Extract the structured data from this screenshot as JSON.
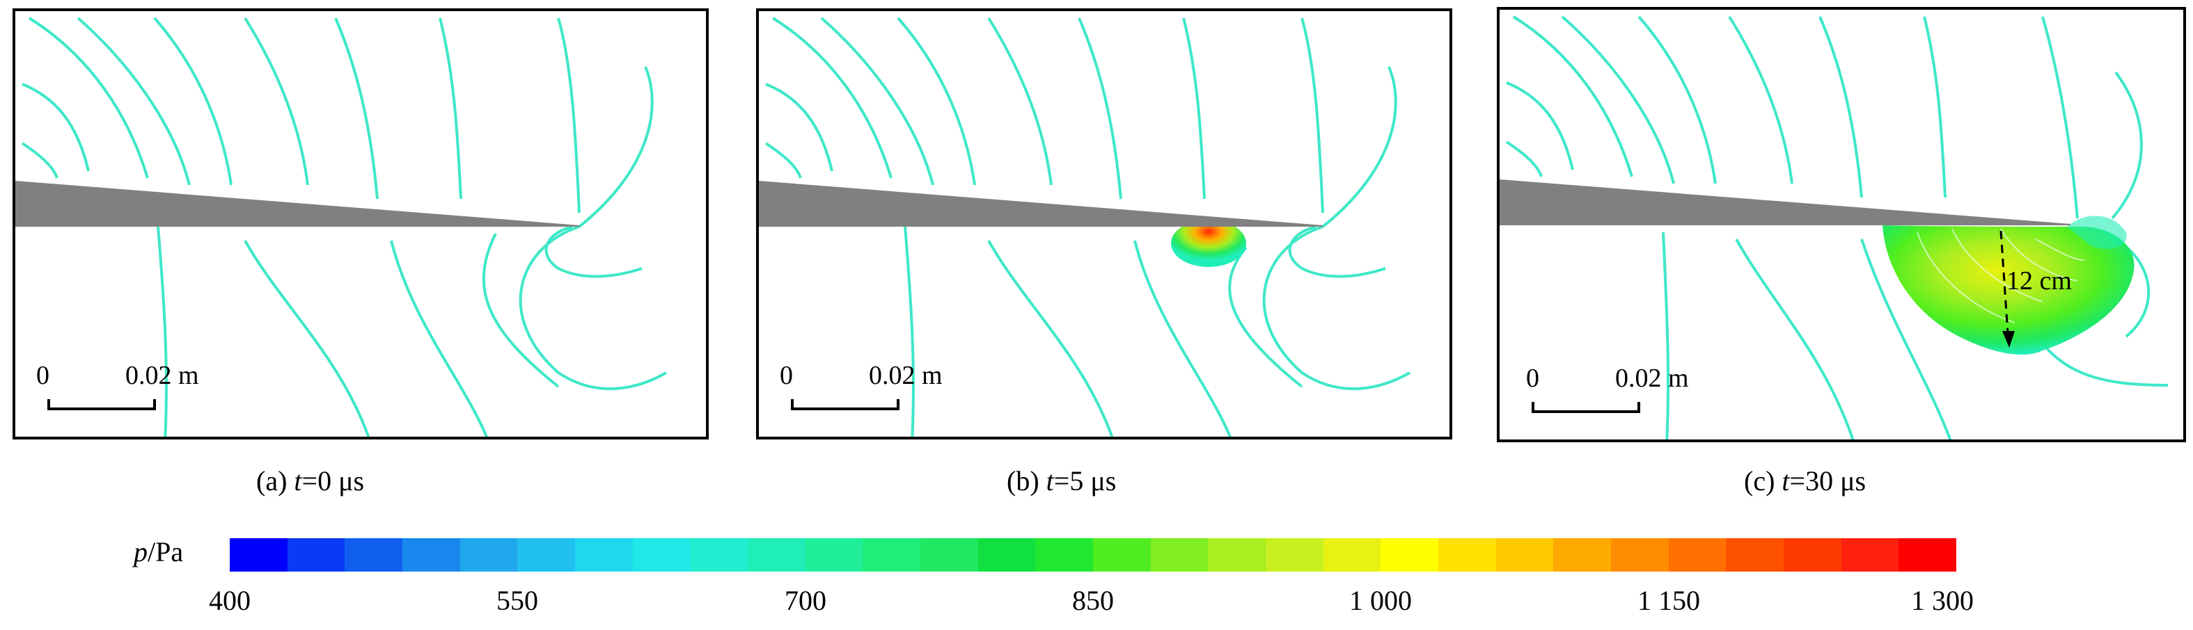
{
  "panels": [
    {
      "caption_prefix": "(a) ",
      "caption_var": "t",
      "caption_value": "=0 μs",
      "scale_zero": "0",
      "scale_value": "0.02 m",
      "annotation": ""
    },
    {
      "caption_prefix": "(b) ",
      "caption_var": "t",
      "caption_value": "=5 μs",
      "scale_zero": "0",
      "scale_value": "0.02 m",
      "annotation": ""
    },
    {
      "caption_prefix": "(c) ",
      "caption_var": "t",
      "caption_value": "=30 μs",
      "scale_zero": "0",
      "scale_value": "0.02 m",
      "annotation": "12 cm"
    }
  ],
  "colorbar": {
    "var": "p",
    "unit": "/Pa",
    "ticks": [
      "400",
      "550",
      "700",
      "850",
      "1 000",
      "1 150",
      "1 300"
    ],
    "colors": [
      "#0000ff",
      "#0a3af5",
      "#1060f0",
      "#1888ee",
      "#20a8ee",
      "#20c0ee",
      "#20d8ee",
      "#20e8e8",
      "#20eed0",
      "#20eeb8",
      "#20ee9a",
      "#20ee7a",
      "#20e860",
      "#10e040",
      "#20e830",
      "#50ee20",
      "#80ee20",
      "#a8ee20",
      "#c8f020",
      "#e8f210",
      "#ffff00",
      "#ffe000",
      "#ffc800",
      "#ffaa00",
      "#ff8c00",
      "#ff7000",
      "#ff5200",
      "#ff3a00",
      "#ff2010",
      "#ff0000"
    ],
    "contour_color": "#3ee8c8",
    "wedge_color": "#808080"
  }
}
